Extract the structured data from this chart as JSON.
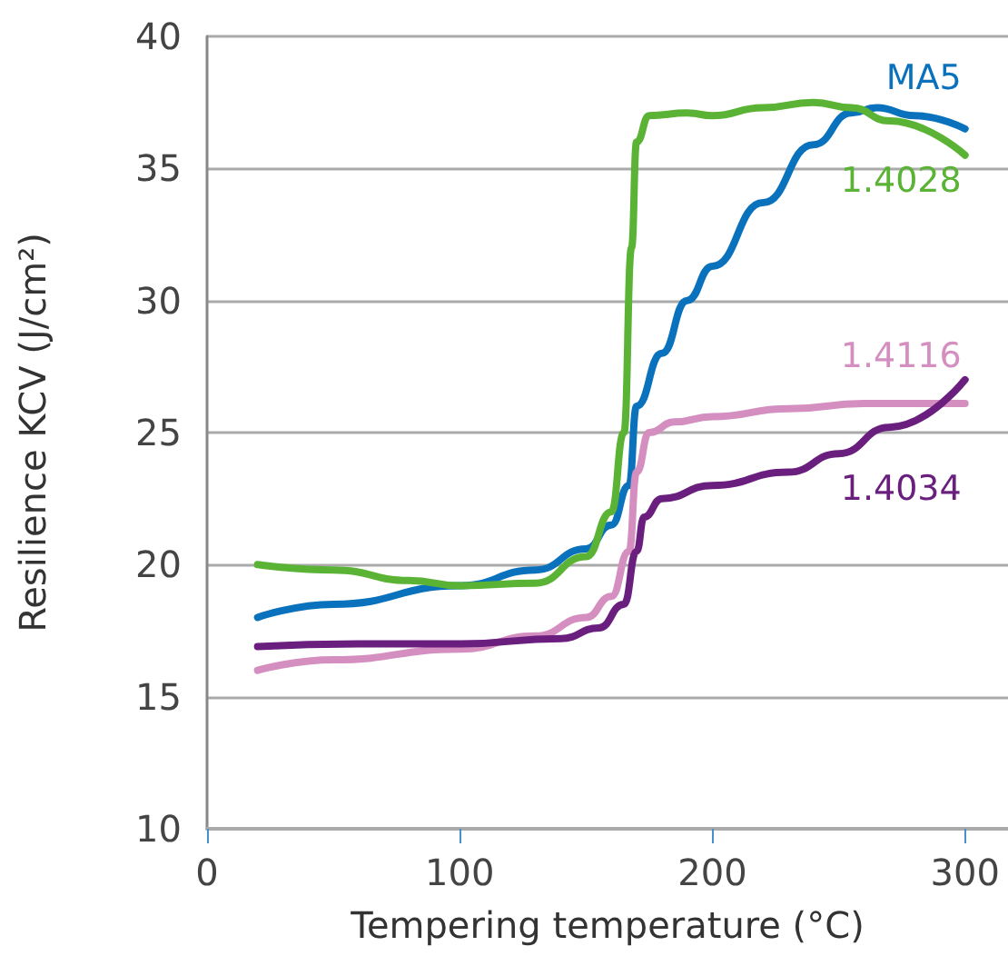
{
  "chart_data": {
    "type": "line",
    "xlabel": "Tempering temperature (°C)",
    "ylabel": "Resilience KCV (J/cm²)",
    "xlim": [
      0,
      317
    ],
    "xticks": [
      0,
      100,
      200,
      300
    ],
    "ylim": [
      10,
      40
    ],
    "yticks": [
      10,
      15,
      20,
      25,
      30,
      35,
      40
    ],
    "grid": "y",
    "legend": false,
    "marker": "none",
    "line_style": "solid",
    "series": [
      {
        "name": "MA5",
        "color": "#0a72bd",
        "x": [
          20,
          50,
          100,
          130,
          150,
          160,
          167,
          170,
          180,
          190,
          200,
          220,
          240,
          255,
          265,
          280,
          300
        ],
        "values": [
          18,
          18.5,
          19.2,
          19.8,
          20.6,
          21.5,
          23,
          26,
          28,
          30,
          31.3,
          33.7,
          35.9,
          37.1,
          37.3,
          37,
          36.5
        ]
      },
      {
        "name": "1.4028",
        "color": "#5ab335",
        "x": [
          20,
          50,
          80,
          100,
          130,
          150,
          160,
          165,
          168,
          170,
          175,
          190,
          200,
          220,
          240,
          255,
          270,
          300
        ],
        "values": [
          20,
          19.8,
          19.4,
          19.2,
          19.3,
          20.3,
          22,
          25,
          32,
          36,
          37,
          37.1,
          37,
          37.3,
          37.5,
          37.3,
          36.8,
          35.5
        ]
      },
      {
        "name": "1.4116",
        "color": "#d48fc0",
        "x": [
          20,
          50,
          100,
          130,
          150,
          160,
          167,
          170,
          175,
          185,
          200,
          230,
          260,
          300
        ],
        "values": [
          16,
          16.4,
          16.8,
          17.3,
          18,
          18.8,
          20.5,
          23.5,
          25,
          25.4,
          25.6,
          25.9,
          26.1,
          26.1
        ]
      },
      {
        "name": "1.4034",
        "color": "#6a1f7f",
        "x": [
          20,
          60,
          100,
          140,
          155,
          165,
          170,
          173,
          180,
          200,
          230,
          250,
          270,
          300
        ],
        "values": [
          16.9,
          17,
          17,
          17.2,
          17.6,
          18.5,
          20.5,
          21.8,
          22.5,
          23,
          23.5,
          24.2,
          25.2,
          27
        ]
      }
    ]
  }
}
